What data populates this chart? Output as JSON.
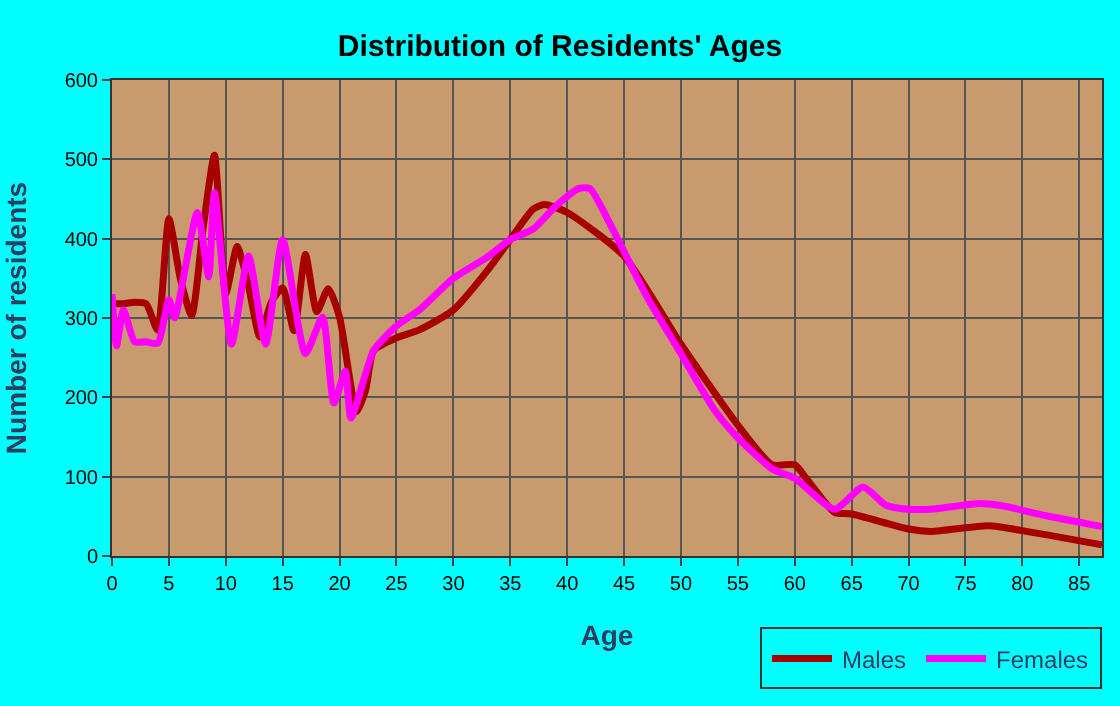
{
  "chart_data": {
    "type": "line",
    "title": "Distribution of Residents' Ages",
    "xlabel": "Age",
    "ylabel": "Number of residents",
    "xlim": [
      0,
      87
    ],
    "xticks": [
      0,
      5,
      10,
      15,
      20,
      25,
      30,
      35,
      40,
      45,
      50,
      55,
      60,
      65,
      70,
      75,
      80,
      85
    ],
    "ylim": [
      0,
      600
    ],
    "yticks": [
      0,
      100,
      200,
      300,
      400,
      500,
      600
    ],
    "grid": true,
    "legend": "bottom right",
    "marker": "none",
    "line_style": "solid",
    "series": [
      {
        "name": "Males",
        "color": "#a80000",
        "x": [
          0,
          1,
          2,
          3,
          4,
          5,
          6,
          7,
          8,
          9,
          10,
          11,
          12,
          13,
          14,
          15,
          16,
          17,
          18,
          19,
          20,
          21.5,
          22.3,
          23,
          25,
          27,
          30,
          33,
          35,
          37,
          38,
          40,
          45,
          50,
          55,
          58,
          60,
          61,
          63.5,
          65,
          70,
          72,
          77,
          80,
          87
        ],
        "values": [
          318,
          318,
          320,
          318,
          285,
          425,
          350,
          303,
          412,
          505,
          331,
          390,
          340,
          276,
          320,
          338,
          284,
          380,
          308,
          337,
          301,
          182,
          210,
          259,
          275,
          285,
          310,
          360,
          399,
          437,
          443,
          433,
          378,
          267,
          165,
          115,
          115,
          98,
          55,
          53,
          34,
          31,
          38,
          32,
          14
        ]
      },
      {
        "name": "Females",
        "color": "#ff00ff",
        "x": [
          0,
          0.4,
          1,
          2,
          3,
          4,
          5,
          5.5,
          7.5,
          8.5,
          9,
          10.5,
          12,
          13.5,
          15,
          17,
          18.5,
          19.5,
          20.5,
          21,
          23,
          25,
          27,
          30,
          33,
          35,
          37,
          39,
          41,
          42,
          44,
          47,
          50,
          53,
          55,
          58,
          60,
          63.5,
          66,
          68,
          70,
          72,
          76,
          78,
          82,
          87
        ],
        "values": [
          330,
          265,
          310,
          270,
          270,
          268,
          323,
          300,
          433,
          352,
          458,
          267,
          378,
          267,
          399,
          255,
          301,
          193,
          233,
          174,
          259,
          290,
          310,
          350,
          377,
          399,
          412,
          441,
          463,
          463,
          412,
          327,
          255,
          183,
          149,
          110,
          98,
          59,
          87,
          64,
          59,
          59,
          66,
          64,
          51,
          37
        ]
      }
    ]
  }
}
